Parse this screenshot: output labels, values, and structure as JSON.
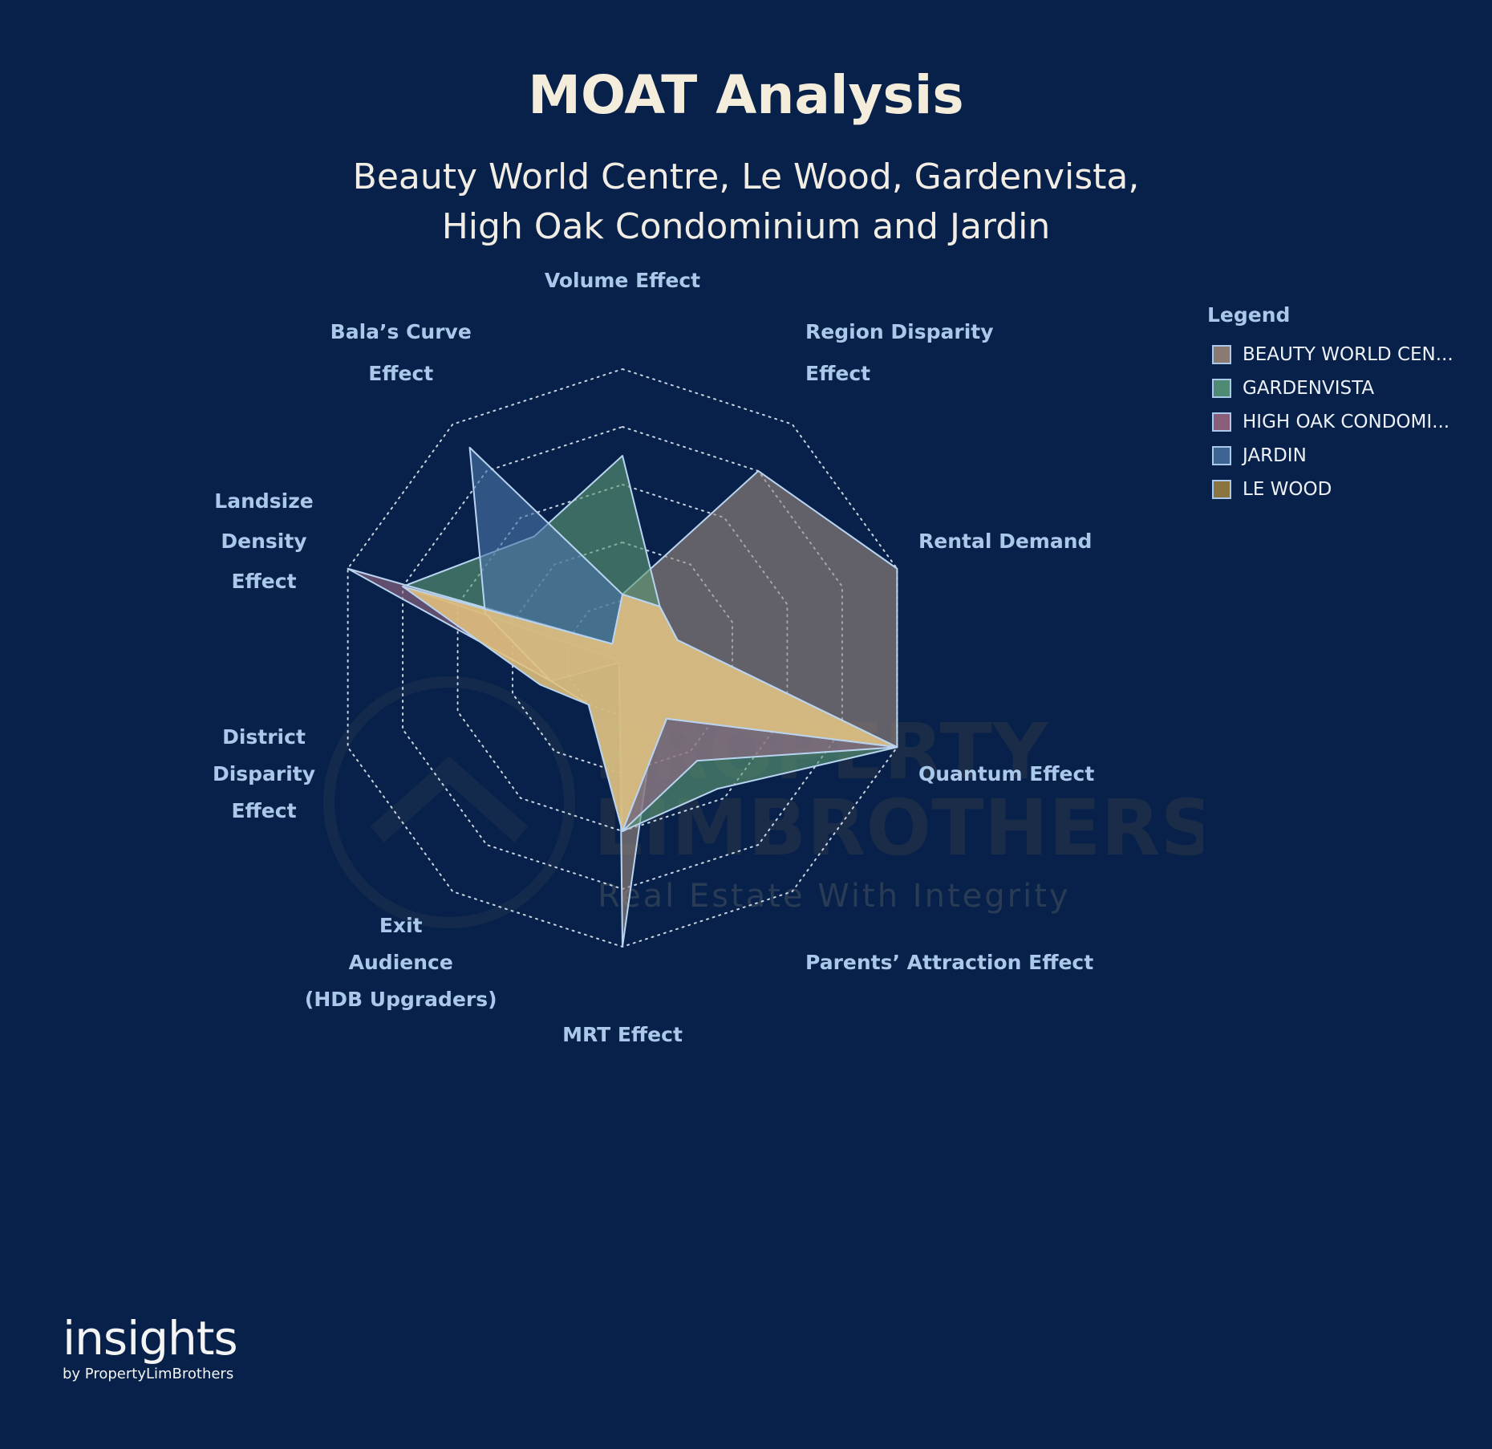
{
  "header": {
    "title": "MOAT Analysis",
    "subtitle_line1": "Beauty World Centre, Le Wood, Gardenvista,",
    "subtitle_line2": "High Oak Condominium and Jardin"
  },
  "legend": {
    "title": "Legend",
    "items": [
      {
        "label": "BEAUTY WORLD CEN...",
        "color": "#8a7a72"
      },
      {
        "label": "GARDENVISTA",
        "color": "#4f8a74"
      },
      {
        "label": "HIGH OAK CONDOMI...",
        "color": "#8a5e7a"
      },
      {
        "label": "JARDIN",
        "color": "#3e6493"
      },
      {
        "label": "LE WOOD",
        "color": "#8a7440"
      }
    ]
  },
  "chart_data": {
    "type": "radar",
    "axes": [
      [
        "Volume Effect"
      ],
      [
        "Region Disparity",
        "Effect"
      ],
      [
        "Rental Demand"
      ],
      [
        "Quantum Effect"
      ],
      [
        "Parents’ Attraction Effect"
      ],
      [
        "MRT Effect"
      ],
      [
        "Exit",
        "Audience",
        "(HDB Upgraders)"
      ],
      [
        "District",
        "Disparity",
        "Effect"
      ],
      [
        "Landsize",
        "Density",
        "Effect"
      ],
      [
        "Bala’s Curve",
        "Effect"
      ]
    ],
    "levels": 5,
    "max": 5,
    "series": [
      {
        "name": "BEAUTY WORLD CEN...",
        "color": "#9b877c",
        "values": [
          1.1,
          4.0,
          5.0,
          5.0,
          1.0,
          5.0,
          0.1,
          0.1,
          0.3,
          0.3
        ]
      },
      {
        "name": "GARDENVISTA",
        "color": "#5c9a72",
        "values": [
          3.5,
          1.1,
          1.0,
          5.0,
          2.8,
          3.0,
          0.1,
          0.1,
          4.0,
          2.6
        ]
      },
      {
        "name": "HIGH OAK CONDOMI...",
        "color": "#9a6b86",
        "values": [
          1.1,
          1.1,
          1.0,
          5.0,
          2.2,
          3.0,
          0.1,
          1.3,
          5.0,
          0.3
        ]
      },
      {
        "name": "JARDIN",
        "color": "#4a74a8",
        "values": [
          1.1,
          1.1,
          1.0,
          5.0,
          1.3,
          3.0,
          1.0,
          1.3,
          2.5,
          4.5
        ]
      },
      {
        "name": "LE WOOD",
        "color": "#e3c27d",
        "values": [
          1.1,
          1.1,
          1.0,
          5.0,
          1.3,
          3.0,
          1.0,
          1.5,
          4.0,
          0.3
        ]
      }
    ]
  },
  "watermark": {
    "line1": "PROPERTY",
    "line2": "LIMBROTHERS",
    "line3": "Real Estate With Integrity"
  },
  "brand": {
    "name": "insights",
    "by": "by PropertyLimBrothers"
  }
}
